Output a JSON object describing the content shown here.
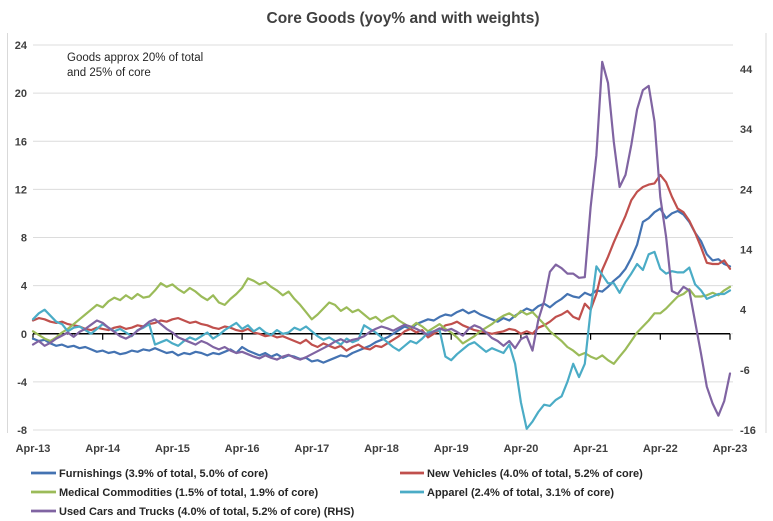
{
  "title": "Core Goods (yoy% and with weights)",
  "annotation": {
    "line1": "Goods approx 20% of total",
    "line2": "and 25% of core"
  },
  "axes": {
    "left_ticks": [
      24,
      20,
      16,
      12,
      8,
      4,
      0,
      -4,
      -8
    ],
    "right_ticks": [
      44,
      34,
      24,
      14,
      4,
      -6,
      -16
    ],
    "x_labels": [
      "Apr-13",
      "Apr-14",
      "Apr-15",
      "Apr-16",
      "Apr-17",
      "Apr-18",
      "Apr-19",
      "Apr-20",
      "Apr-21",
      "Apr-22",
      "Apr-23"
    ],
    "left_range": [
      -8,
      24
    ],
    "right_range": [
      -16,
      48
    ],
    "gridline_color": "#dcdcdc",
    "zero_line_color": "#000000"
  },
  "chart_data": {
    "type": "line",
    "title": "Core Goods (yoy% and with weights)",
    "x_start": "Apr-13",
    "x_end": "Apr-23",
    "x_frequency": "monthly",
    "left_axis_range": [
      -8,
      24
    ],
    "right_axis_range": [
      -16,
      48
    ],
    "grid": true,
    "legend_position": "bottom",
    "series": [
      {
        "key": "furnishings",
        "name": "Furnishings (3.9% of total, 5.0% of core)",
        "color": "#4473B2",
        "axis": "left",
        "values": [
          -0.4,
          -0.6,
          -0.5,
          -0.8,
          -1.0,
          -0.9,
          -1.1,
          -1.0,
          -1.2,
          -1.1,
          -1.3,
          -1.5,
          -1.4,
          -1.6,
          -1.5,
          -1.7,
          -1.6,
          -1.4,
          -1.5,
          -1.3,
          -1.4,
          -1.2,
          -1.4,
          -1.6,
          -1.5,
          -1.8,
          -1.6,
          -1.7,
          -1.5,
          -1.6,
          -1.8,
          -1.6,
          -1.7,
          -1.5,
          -1.3,
          -1.6,
          -1.1,
          -1.4,
          -1.6,
          -1.8,
          -1.6,
          -1.9,
          -1.7,
          -2.0,
          -1.8,
          -1.9,
          -2.1,
          -2.0,
          -2.3,
          -2.2,
          -2.4,
          -2.2,
          -2.0,
          -1.8,
          -1.9,
          -1.6,
          -1.4,
          -1.2,
          -1.0,
          -0.7,
          -0.5,
          -0.3,
          0.0,
          0.3,
          0.6,
          0.4,
          0.8,
          1.0,
          1.2,
          1.1,
          1.4,
          1.6,
          1.5,
          1.8,
          2.0,
          1.7,
          1.9,
          1.6,
          1.4,
          1.2,
          1.0,
          1.3,
          1.1,
          1.5,
          1.8,
          2.1,
          1.9,
          2.3,
          2.5,
          2.2,
          2.6,
          2.9,
          3.3,
          3.1,
          3.0,
          3.4,
          3.2,
          3.6,
          3.5,
          3.9,
          4.4,
          4.8,
          5.4,
          6.3,
          7.4,
          9.3,
          9.6,
          10.1,
          10.4,
          9.6,
          10.0,
          10.2,
          9.9,
          9.3,
          8.4,
          7.7,
          6.6,
          6.1,
          6.2,
          5.8,
          5.6
        ]
      },
      {
        "key": "new-vehicles",
        "name": "New Vehicles (4.0% of total, 5.2% of core)",
        "color": "#C0504D",
        "axis": "left",
        "values": [
          1.1,
          1.3,
          1.2,
          1.0,
          0.9,
          1.0,
          0.8,
          0.7,
          0.6,
          0.4,
          0.3,
          0.5,
          0.4,
          0.3,
          0.5,
          0.6,
          0.4,
          0.5,
          0.7,
          0.6,
          0.8,
          0.9,
          1.1,
          1.0,
          1.2,
          1.3,
          1.1,
          0.9,
          1.0,
          0.8,
          0.7,
          0.5,
          0.4,
          0.6,
          0.5,
          0.3,
          0.2,
          0.4,
          0.1,
          0.0,
          -0.2,
          -0.1,
          -0.3,
          -0.2,
          -0.4,
          -0.6,
          -0.8,
          -0.5,
          -0.9,
          -1.1,
          -0.8,
          -1.0,
          -1.2,
          -1.0,
          -1.4,
          -1.1,
          -0.9,
          -1.2,
          -1.3,
          -1.0,
          -1.1,
          -0.8,
          -0.5,
          -0.2,
          0.2,
          0.4,
          0.1,
          0.3,
          -0.3,
          0.0,
          0.3,
          0.7,
          0.8,
          1.0,
          0.7,
          0.5,
          0.3,
          0.2,
          0.1,
          0.0,
          0.1,
          0.2,
          0.4,
          0.3,
          0.0,
          0.2,
          0.0,
          0.5,
          0.7,
          1.0,
          1.4,
          1.6,
          1.9,
          1.4,
          1.2,
          2.5,
          2.0,
          3.3,
          5.3,
          6.4,
          7.6,
          8.7,
          9.8,
          11.1,
          11.8,
          12.2,
          12.4,
          12.5,
          13.2,
          12.6,
          11.4,
          10.4,
          10.1,
          9.4,
          8.4,
          7.2,
          5.9,
          5.8,
          5.8,
          6.1,
          5.4
        ]
      },
      {
        "key": "medical-commodities",
        "name": "Medical Commodities (1.5% of total, 1.9% of core)",
        "color": "#9BBB59",
        "axis": "left",
        "values": [
          0.2,
          -0.1,
          -0.4,
          -0.6,
          -0.3,
          0.1,
          0.4,
          0.8,
          1.2,
          1.6,
          2.0,
          2.4,
          2.2,
          2.7,
          3.0,
          2.8,
          3.2,
          2.9,
          3.3,
          3.0,
          3.1,
          3.6,
          4.2,
          3.9,
          4.1,
          3.7,
          3.4,
          3.8,
          3.5,
          3.1,
          2.8,
          3.2,
          2.6,
          2.4,
          2.9,
          3.3,
          3.8,
          4.6,
          4.4,
          4.1,
          4.3,
          3.9,
          3.6,
          3.2,
          3.5,
          2.9,
          2.4,
          1.8,
          1.2,
          1.6,
          2.1,
          2.6,
          2.4,
          1.9,
          2.2,
          1.8,
          2.0,
          1.6,
          1.2,
          1.4,
          1.0,
          1.3,
          1.5,
          1.1,
          0.8,
          0.5,
          0.9,
          0.6,
          0.2,
          0.5,
          0.8,
          0.4,
          0.1,
          -0.3,
          -0.8,
          -0.5,
          -0.2,
          0.2,
          0.5,
          0.8,
          1.2,
          1.5,
          1.7,
          1.4,
          1.9,
          1.6,
          1.8,
          1.3,
          0.8,
          0.2,
          -0.2,
          -0.6,
          -1.1,
          -1.4,
          -1.8,
          -1.6,
          -1.9,
          -2.1,
          -1.8,
          -2.2,
          -2.5,
          -1.9,
          -1.3,
          -0.6,
          0.1,
          0.6,
          1.1,
          1.7,
          1.7,
          2.1,
          2.6,
          3.1,
          3.3,
          3.7,
          3.1,
          3.1,
          3.2,
          3.4,
          3.2,
          3.6,
          3.9
        ]
      },
      {
        "key": "apparel",
        "name": "Apparel (2.4% of total, 3.1% of core)",
        "color": "#4BACC6",
        "axis": "left",
        "values": [
          1.2,
          1.7,
          2.0,
          1.5,
          1.0,
          0.8,
          0.2,
          0.5,
          0.6,
          0.3,
          0.0,
          0.4,
          0.8,
          0.5,
          0.2,
          0.4,
          0.1,
          -0.2,
          0.3,
          0.5,
          0.8,
          -0.9,
          -0.7,
          -0.5,
          -0.8,
          -1.0,
          -0.6,
          -0.3,
          -0.5,
          -0.2,
          0.1,
          -0.4,
          -0.1,
          0.3,
          0.6,
          0.9,
          0.4,
          0.7,
          0.2,
          0.5,
          0.1,
          -0.1,
          0.3,
          0.0,
          0.1,
          0.5,
          0.3,
          0.6,
          0.2,
          -0.2,
          -0.5,
          -0.3,
          -0.6,
          -0.9,
          -0.4,
          -0.7,
          -0.5,
          0.7,
          0.4,
          0.1,
          -0.3,
          -0.7,
          -1.1,
          -1.4,
          -1.0,
          -0.6,
          -0.8,
          -0.4,
          0.1,
          0.2,
          0.3,
          -1.9,
          -2.2,
          -1.7,
          -1.3,
          -0.9,
          -0.7,
          -1.1,
          -1.5,
          -1.2,
          -1.4,
          -1.6,
          -0.9,
          -2.5,
          -5.7,
          -7.9,
          -7.3,
          -6.5,
          -5.9,
          -6.0,
          -5.5,
          -5.2,
          -4.0,
          -2.5,
          -3.6,
          -2.5,
          1.9,
          5.6,
          4.9,
          4.2,
          4.2,
          3.4,
          4.3,
          5.0,
          5.8,
          5.3,
          6.6,
          6.8,
          5.4,
          5.0,
          5.2,
          5.1,
          5.1,
          5.5,
          4.1,
          3.6,
          2.9,
          3.1,
          3.3,
          3.3,
          3.6
        ]
      },
      {
        "key": "used-cars",
        "name": "Used Cars and Trucks (4.0% of total, 5.2% of core) (RHS)",
        "color": "#8064A2",
        "axis": "right",
        "values": [
          -1.8,
          -1.2,
          -2.0,
          -1.5,
          -0.8,
          -0.3,
          0.2,
          -0.5,
          0.3,
          0.8,
          1.5,
          2.2,
          1.8,
          1.0,
          0.3,
          -0.4,
          -0.8,
          -0.3,
          0.5,
          1.2,
          2.0,
          2.4,
          1.6,
          0.8,
          0.2,
          -0.6,
          -1.0,
          -1.4,
          -1.8,
          -1.2,
          -1.6,
          -2.2,
          -2.6,
          -2.2,
          -2.8,
          -3.2,
          -3.0,
          -3.4,
          -3.8,
          -4.1,
          -3.6,
          -4.0,
          -4.3,
          -3.8,
          -3.5,
          -4.0,
          -4.3,
          -3.9,
          -3.4,
          -2.9,
          -2.4,
          -1.9,
          -1.3,
          -0.9,
          -1.4,
          -1.0,
          -0.8,
          -0.4,
          0.3,
          0.8,
          1.2,
          0.9,
          0.5,
          1.0,
          1.5,
          1.2,
          0.8,
          0.3,
          -0.2,
          0.4,
          0.9,
          0.5,
          0.8,
          0.3,
          -0.3,
          0.8,
          1.4,
          1.0,
          0.2,
          -0.7,
          -1.2,
          -2.0,
          -1.2,
          -2.4,
          -0.9,
          -0.4,
          -2.8,
          2.3,
          5.4,
          10.3,
          11.5,
          10.9,
          10.0,
          10.0,
          9.3,
          9.4,
          21.0,
          29.7,
          45.2,
          41.7,
          31.9,
          24.4,
          26.4,
          31.4,
          37.3,
          40.5,
          41.2,
          35.3,
          22.7,
          16.1,
          7.1,
          6.6,
          7.8,
          7.2,
          2.0,
          -3.3,
          -8.8,
          -11.6,
          -13.6,
          -11.2,
          -6.6
        ]
      }
    ]
  }
}
